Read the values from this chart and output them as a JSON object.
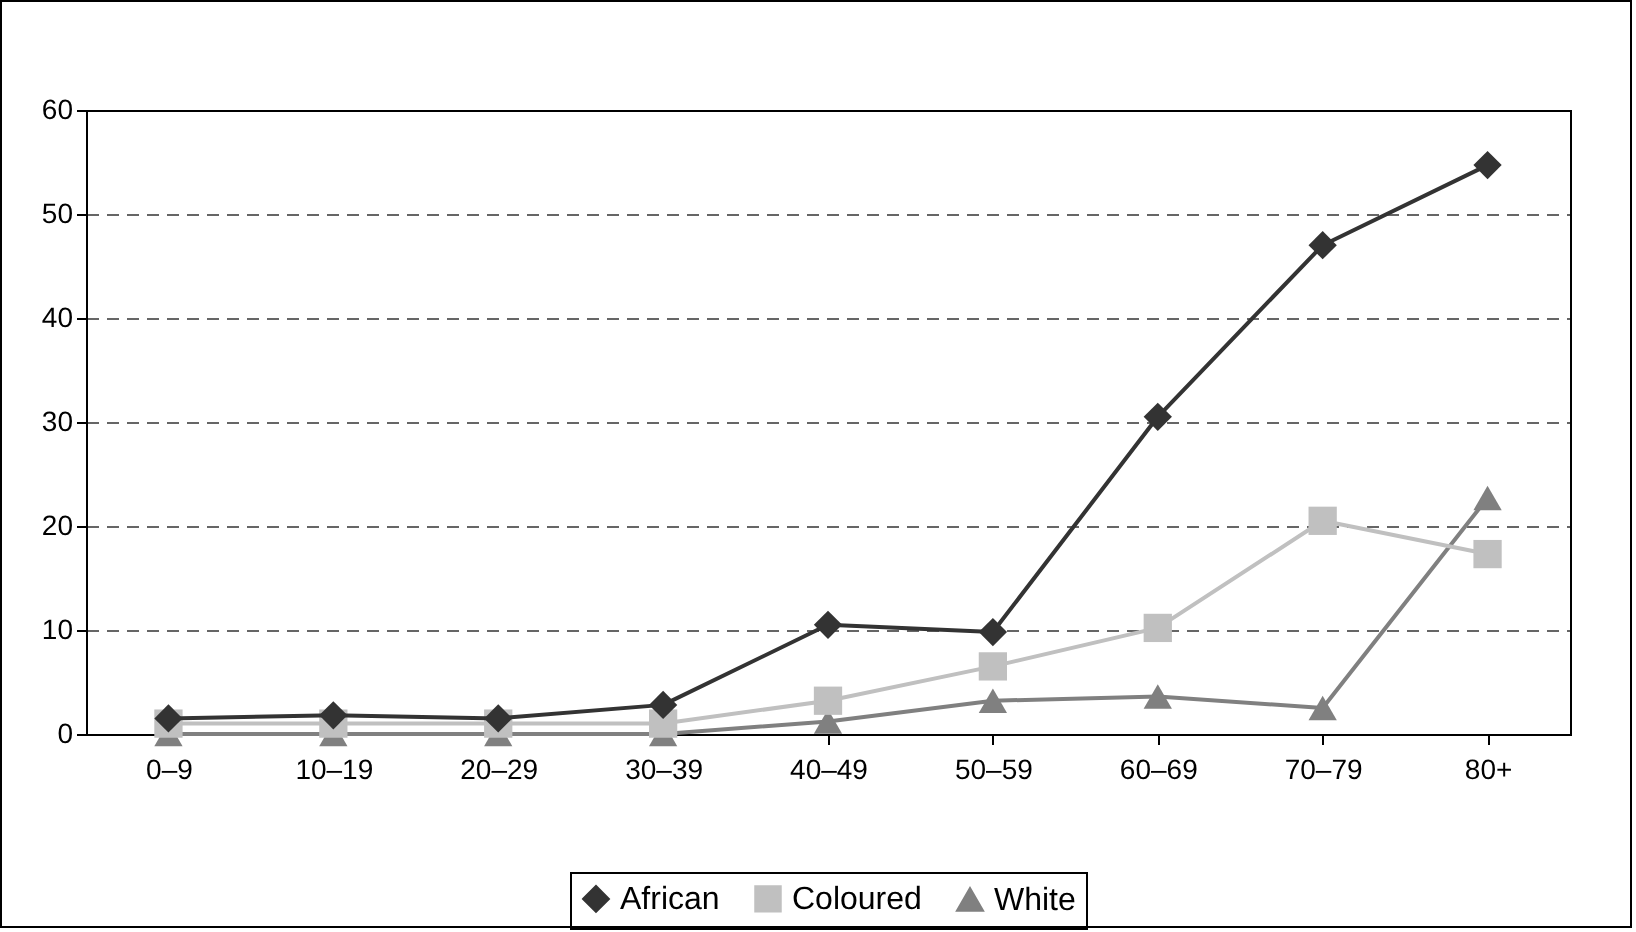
{
  "chart_data": {
    "type": "line",
    "categories": [
      "0–9",
      "10–19",
      "20–29",
      "30–39",
      "40–49",
      "50–59",
      "60–69",
      "70–79",
      "80+"
    ],
    "series": [
      {
        "name": "African",
        "color": "#333333",
        "marker": "diamond",
        "values": [
          1.5,
          1.8,
          1.5,
          2.8,
          10.5,
          9.8,
          30.5,
          47,
          54.7
        ]
      },
      {
        "name": "Coloured",
        "color": "#c0c0c0",
        "marker": "square",
        "values": [
          1,
          1,
          1,
          1,
          3.2,
          6.5,
          10.2,
          20.5,
          17.3
        ]
      },
      {
        "name": "White",
        "color": "#808080",
        "marker": "triangle",
        "values": [
          0,
          0,
          0,
          0,
          1.2,
          3.2,
          3.6,
          2.5,
          22.7
        ]
      }
    ],
    "ylim": [
      0,
      60
    ],
    "yticks": [
      0,
      10,
      20,
      30,
      40,
      50,
      60
    ],
    "grid": "y",
    "line_style": "solid",
    "legend": "bottom"
  }
}
